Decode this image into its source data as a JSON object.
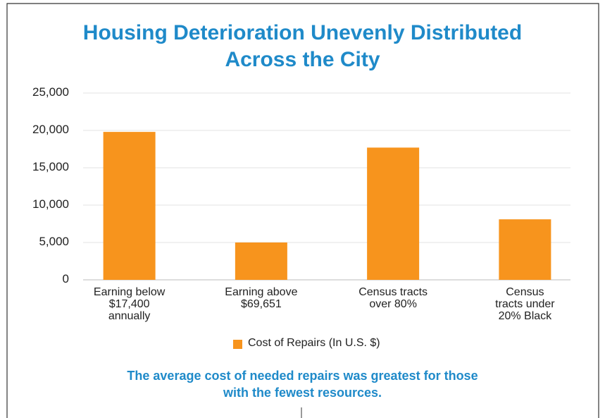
{
  "chart_data": {
    "type": "bar",
    "title": "Housing Deterioration Unevenly Distributed\nAcross the City",
    "categories": [
      "Earning below\n$17,400\nannually",
      "Earning above\n$69,651",
      "Census tracts\nover 80%",
      "Census\ntracts under\n20% Black"
    ],
    "series": [
      {
        "name": "Cost of Repairs (In U.S. $)",
        "color": "#f7941d",
        "values": [
          19800,
          5000,
          17700,
          8100
        ]
      }
    ],
    "ylim": [
      0,
      25000
    ],
    "yticks": [
      0,
      {
        "value": 5000,
        "label": "5,000"
      },
      {
        "value": 10000,
        "label": "10,000"
      },
      {
        "value": 15000,
        "label": "15,000"
      },
      {
        "value": 20000,
        "label": "20,000"
      },
      {
        "value": 25000,
        "label": "25,000"
      }
    ],
    "grid": true,
    "legend": "bottom",
    "annotation": "The average cost of needed repairs was greatest for those\nwith the fewest resources."
  }
}
